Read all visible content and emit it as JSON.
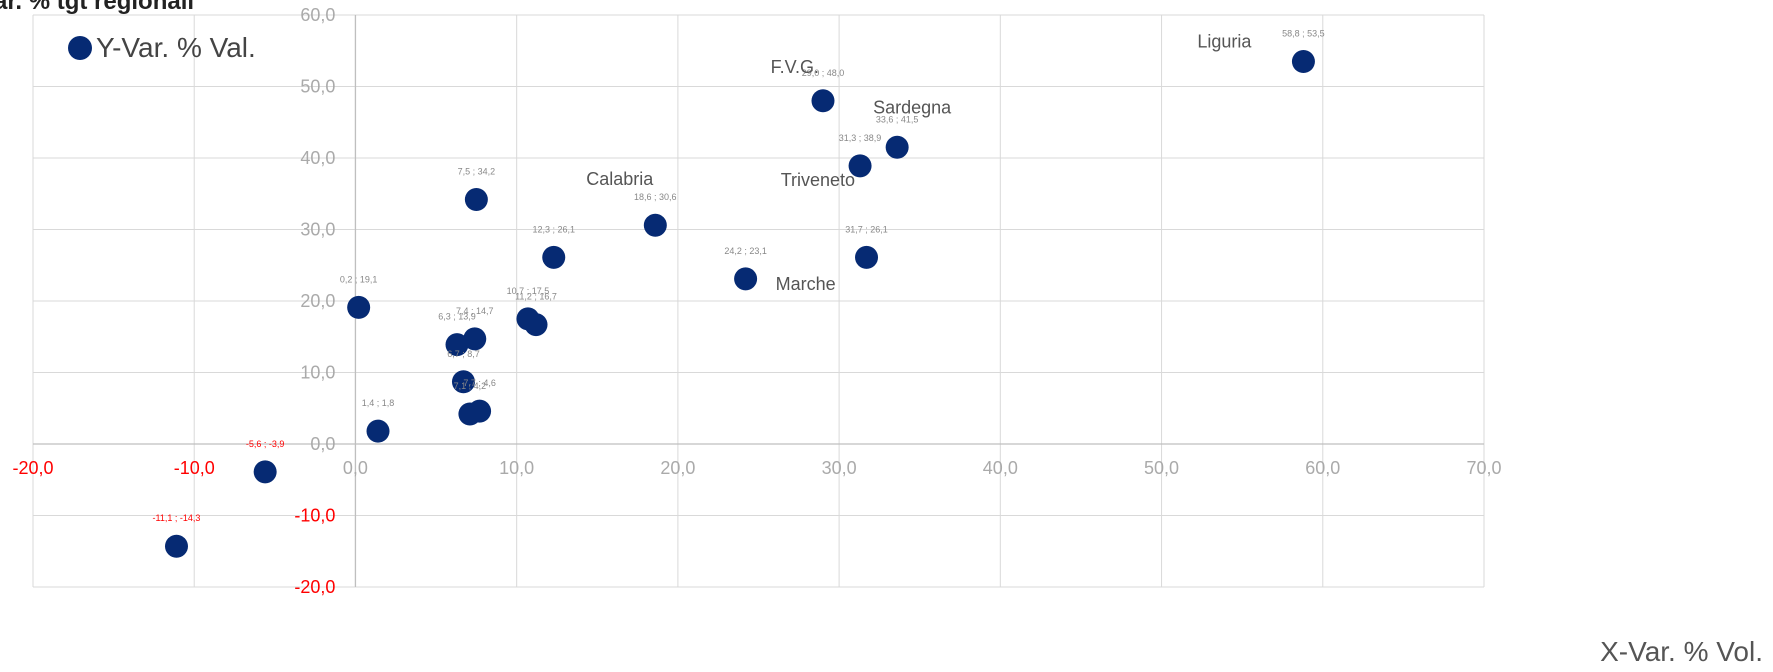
{
  "header": {
    "title_fragment": "ar. % tgt regionali"
  },
  "legend": {
    "label": "Y-Var. % Val.",
    "color": "#062a73"
  },
  "x_axis_title": "X-Var. % Vol.",
  "colors": {
    "point": "#062a73",
    "negative_label": "#ff0000",
    "tick_label": "#666666",
    "grid": "#d9d9d9"
  },
  "chart_data": {
    "type": "scatter",
    "xlim": [
      -20,
      70
    ],
    "ylim": [
      -20,
      60
    ],
    "xticks": [
      "-20,0",
      "-10,0",
      "0,0",
      "10,0",
      "20,0",
      "30,0",
      "40,0",
      "50,0",
      "60,0",
      "70,0"
    ],
    "yticks": [
      "60,0",
      "50,0",
      "40,0",
      "30,0",
      "20,0",
      "10,0",
      "0,0",
      "-10,0",
      "-20,0"
    ],
    "xlabel": "X-Var. % Vol.",
    "grid": true,
    "legend_position": "top-left",
    "series": [
      {
        "name": "Y-Var. % Val.",
        "points": [
          {
            "x": 58.8,
            "y": 53.5,
            "label": "58,8 ; 53,5",
            "name": "Liguria"
          },
          {
            "x": 29.0,
            "y": 48.0,
            "label": "29,0 ; 48,0",
            "name": "F.V.G."
          },
          {
            "x": 33.6,
            "y": 41.5,
            "label": "33,6 ; 41,5",
            "name": "Sardegna"
          },
          {
            "x": 31.3,
            "y": 38.9,
            "label": "31,3 ; 38,9",
            "name": "Triveneto"
          },
          {
            "x": 7.5,
            "y": 34.2,
            "label": "7,5 ; 34,2",
            "name": ""
          },
          {
            "x": 18.6,
            "y": 30.6,
            "label": "18,6 ; 30,6",
            "name": "Calabria"
          },
          {
            "x": 12.3,
            "y": 26.1,
            "label": "12,3 ; 26,1",
            "name": ""
          },
          {
            "x": 31.7,
            "y": 26.1,
            "label": "31,7 ; 26,1",
            "name": ""
          },
          {
            "x": 24.2,
            "y": 23.1,
            "label": "24,2 ; 23,1",
            "name": "Marche"
          },
          {
            "x": 0.2,
            "y": 19.1,
            "label": "0,2 ; 19,1",
            "name": ""
          },
          {
            "x": 10.7,
            "y": 17.5,
            "label": "10,7 ; 17,5",
            "name": ""
          },
          {
            "x": 11.2,
            "y": 16.7,
            "label": "11,2 ; 16,7",
            "name": ""
          },
          {
            "x": 7.4,
            "y": 14.7,
            "label": "7,4 ; 14,7",
            "name": ""
          },
          {
            "x": 6.3,
            "y": 13.9,
            "label": "6,3 ; 13,9",
            "name": ""
          },
          {
            "x": 6.7,
            "y": 8.7,
            "label": "6,7 ; 8,7",
            "name": ""
          },
          {
            "x": 7.7,
            "y": 4.6,
            "label": "7,7 ; 4,6",
            "name": ""
          },
          {
            "x": 7.1,
            "y": 4.2,
            "label": "7,1 ; 4,2",
            "name": ""
          },
          {
            "x": 1.4,
            "y": 1.8,
            "label": "1,4 ; 1,8",
            "name": ""
          },
          {
            "x": -5.6,
            "y": -3.9,
            "label": "-5,6 ; -3,9",
            "name": ""
          },
          {
            "x": -11.1,
            "y": -14.3,
            "label": "-11,1 ; -14,3",
            "name": ""
          }
        ]
      }
    ]
  }
}
